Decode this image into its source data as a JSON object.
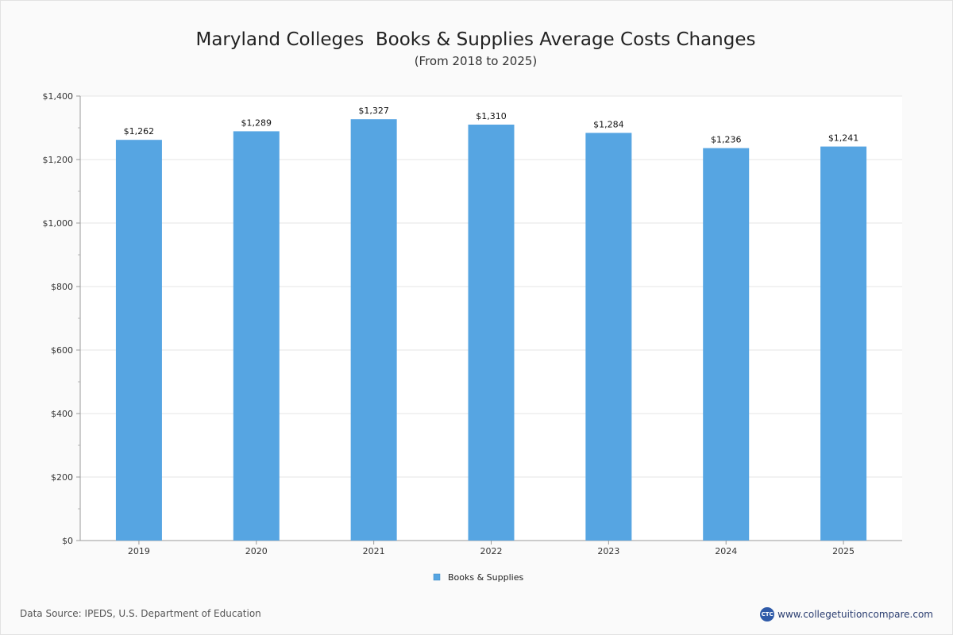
{
  "chart_data": {
    "type": "bar",
    "title": "Maryland Colleges  Books & Supplies Average Costs Changes",
    "subtitle": "(From 2018 to 2025)",
    "categories": [
      "2019",
      "2020",
      "2021",
      "2022",
      "2023",
      "2024",
      "2025"
    ],
    "series": [
      {
        "name": "Books & Supplies",
        "values": [
          1262,
          1289,
          1327,
          1310,
          1284,
          1236,
          1241
        ],
        "labels": [
          "$1,262",
          "$1,289",
          "$1,327",
          "$1,310",
          "$1,284",
          "$1,236",
          "$1,241"
        ],
        "color": "#56a5e2"
      }
    ],
    "ylim": [
      0,
      1400
    ],
    "yticks": [
      0,
      200,
      400,
      600,
      800,
      1000,
      1200,
      1400
    ],
    "ytick_labels": [
      "$0",
      "$200",
      "$400",
      "$600",
      "$800",
      "$1,000",
      "$1,200",
      "$1,400"
    ],
    "grid": true,
    "legend_position": "bottom-center"
  },
  "footer": {
    "source": "Data Source: IPEDS, U.S. Department of Education",
    "logo_text": "CTC",
    "site": "www.collegetuitioncompare.com"
  }
}
